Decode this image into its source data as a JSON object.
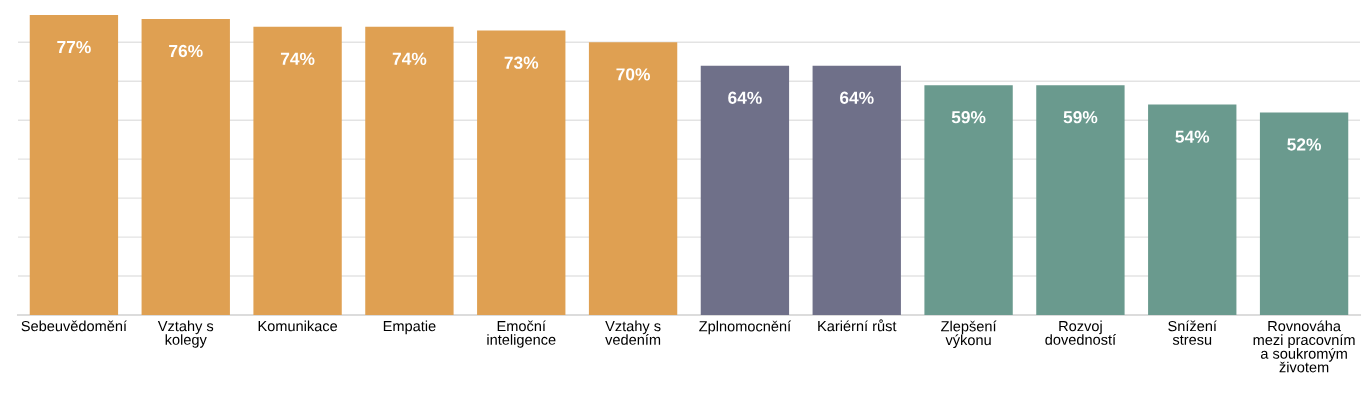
{
  "chart_data": {
    "type": "bar",
    "categories": [
      "Sebeuvědomění",
      "Vztahy s\nkolegy",
      "Komunikace",
      "Empatie",
      "Emoční\ninteligence",
      "Vztahy s\nvedením",
      "Zplnomocnění",
      "Kariérní růst",
      "Zlepšení\nvýkonu",
      "Rozvoj\ndovedností",
      "Snížení\nstresu",
      "Rovnováha\nmezi pracovním\na soukromým\nživotem"
    ],
    "values": [
      77,
      76,
      74,
      74,
      73,
      70,
      64,
      64,
      59,
      59,
      54,
      52
    ],
    "value_labels": [
      "77%",
      "76%",
      "74%",
      "74%",
      "73%",
      "70%",
      "64%",
      "64%",
      "59%",
      "59%",
      "54%",
      "52%"
    ],
    "colors": [
      "#dfa052",
      "#dfa052",
      "#dfa052",
      "#dfa052",
      "#dfa052",
      "#dfa052",
      "#6f7089",
      "#6f7089",
      "#6a9a8e",
      "#6a9a8e",
      "#6a9a8e",
      "#6a9a8e"
    ],
    "yticks": [
      {
        "value": 0,
        "label": null
      },
      {
        "value": 10,
        "label": null
      },
      {
        "value": 20,
        "label": null
      },
      {
        "value": 30,
        "label": null
      },
      {
        "value": 40,
        "label": null
      },
      {
        "value": 50,
        "label": null
      },
      {
        "value": 60,
        "label": null
      },
      {
        "value": 70,
        "label": null
      }
    ],
    "grid": "y",
    "tick_labels": "x"
  }
}
